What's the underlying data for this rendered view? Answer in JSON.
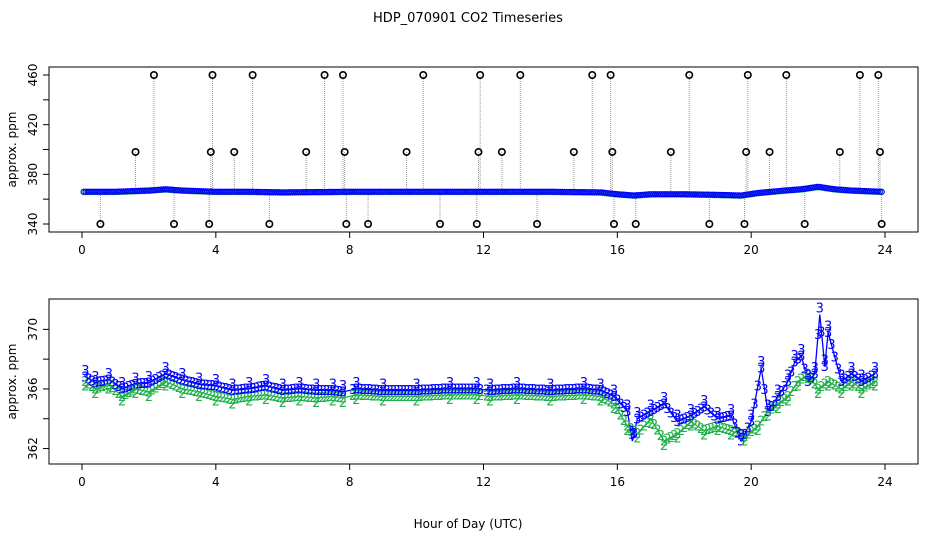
{
  "title": "HDP_070901  CO2 Timeseries",
  "xlabel": "Hour of Day (UTC)",
  "colors": {
    "channel2": "#22b14c",
    "channel3": "#0000ff",
    "qc_marker": "#000000",
    "drop_line": "#999999",
    "overlap": "#00aaff"
  },
  "chart_data": [
    {
      "type": "scatter",
      "panel": "top",
      "ylabel": "approx. ppm",
      "xlim": [
        0,
        24
      ],
      "ylim": [
        340,
        460
      ],
      "x_ticks": [
        0,
        4,
        8,
        12,
        16,
        20,
        24
      ],
      "y_ticks": [
        340,
        380,
        420,
        460
      ],
      "y_tick_labels": [
        "340",
        "380",
        "420",
        "460"
      ],
      "y_minor_ticks": [
        360,
        400,
        440
      ],
      "baseline": {
        "x": [
          0.05,
          1.0,
          2.0,
          2.5,
          3.0,
          4.0,
          5.0,
          6.0,
          8.0,
          10.0,
          12.0,
          14.0,
          15.5,
          16.0,
          16.5,
          17.0,
          18.0,
          19.0,
          19.7,
          20.2,
          21.0,
          21.5,
          22.0,
          22.5,
          23.0,
          23.9
        ],
        "y": [
          366,
          366,
          367,
          368,
          367,
          366,
          366,
          365.5,
          366,
          366,
          366,
          366,
          365.5,
          364,
          363,
          364,
          364,
          363.5,
          363,
          365,
          367,
          368,
          370,
          368,
          367,
          366
        ]
      },
      "flags_high": {
        "x": [
          2.15,
          3.9,
          5.1,
          7.25,
          7.8,
          10.2,
          11.9,
          13.1,
          15.25,
          15.8,
          18.15,
          19.9,
          21.05,
          23.25,
          23.8
        ],
        "y": [
          460,
          460,
          460,
          460,
          460,
          460,
          460,
          460,
          460,
          460,
          460,
          460,
          460,
          460,
          460
        ]
      },
      "flags_mid": {
        "x": [
          1.6,
          3.85,
          4.55,
          6.7,
          7.85,
          9.7,
          11.85,
          12.55,
          14.7,
          15.85,
          17.6,
          19.85,
          20.55,
          22.65,
          23.85
        ],
        "y": [
          398,
          398,
          398,
          398,
          398,
          398,
          398,
          398,
          398,
          398,
          398,
          398,
          398,
          398,
          398
        ]
      },
      "flags_low": {
        "x": [
          0.55,
          2.75,
          3.8,
          5.6,
          7.9,
          8.55,
          10.7,
          11.8,
          13.6,
          15.9,
          16.55,
          18.75,
          19.8,
          21.6,
          23.9
        ],
        "y": [
          340,
          340,
          340,
          340,
          340,
          340,
          340,
          340,
          340,
          340,
          340,
          340,
          340,
          340,
          340
        ]
      }
    },
    {
      "type": "line",
      "panel": "bottom",
      "ylabel": "approx. ppm",
      "xlim": [
        0,
        24
      ],
      "ylim": [
        361.5,
        371.5
      ],
      "x_ticks": [
        0,
        4,
        8,
        12,
        16,
        20,
        24
      ],
      "y_ticks": [
        362,
        366,
        370
      ],
      "y_tick_labels": [
        "362",
        "366",
        "370"
      ],
      "y_minor_ticks": [
        364,
        368
      ],
      "series": [
        {
          "name": "2",
          "x": [
            0.1,
            0.4,
            0.8,
            1.2,
            1.6,
            2.0,
            2.5,
            3.0,
            3.5,
            4.0,
            4.5,
            5.0,
            5.5,
            6.0,
            6.5,
            7.0,
            7.5,
            7.8,
            8.2,
            9.0,
            10.0,
            11.0,
            11.8,
            12.2,
            13.0,
            14.0,
            15.0,
            15.5,
            15.9,
            16.3,
            16.6,
            17.0,
            17.4,
            17.8,
            18.2,
            18.6,
            19.0,
            19.4,
            19.8,
            20.2,
            20.5,
            20.8,
            21.1,
            21.4,
            21.7,
            22.0,
            22.3,
            22.7,
            23.0,
            23.3,
            23.7
          ],
          "y": [
            366.5,
            366,
            366.3,
            365.5,
            366,
            365.8,
            366.5,
            366,
            365.8,
            365.5,
            365.3,
            365.5,
            365.6,
            365.4,
            365.5,
            365.4,
            365.5,
            365.4,
            365.6,
            365.5,
            365.5,
            365.6,
            365.6,
            365.5,
            365.6,
            365.5,
            365.6,
            365.5,
            365,
            363.5,
            363,
            364,
            362.5,
            363,
            363.8,
            363.2,
            363.5,
            363.2,
            362.8,
            363.5,
            364.5,
            365,
            365.5,
            366.5,
            367,
            366,
            366.5,
            366,
            366.5,
            366,
            366.5
          ]
        },
        {
          "name": "3",
          "x": [
            0.1,
            0.4,
            0.8,
            1.2,
            1.6,
            2.0,
            2.5,
            3.0,
            3.5,
            4.0,
            4.5,
            5.0,
            5.5,
            6.0,
            6.5,
            7.0,
            7.5,
            7.8,
            8.2,
            9.0,
            10.0,
            11.0,
            11.8,
            12.2,
            13.0,
            14.0,
            15.0,
            15.5,
            15.9,
            16.3,
            16.45,
            16.6,
            17.0,
            17.4,
            17.8,
            18.2,
            18.6,
            19.0,
            19.4,
            19.7,
            20.0,
            20.3,
            20.5,
            20.8,
            21.1,
            21.3,
            21.5,
            21.7,
            21.9,
            22.05,
            22.2,
            22.3,
            22.7,
            23.0,
            23.3,
            23.7
          ],
          "y": [
            366.8,
            366.4,
            366.6,
            366,
            366.3,
            366.4,
            367,
            366.6,
            366.3,
            366.2,
            365.9,
            366,
            366.2,
            365.9,
            366,
            365.9,
            365.9,
            365.8,
            366,
            365.9,
            365.9,
            366,
            366,
            365.9,
            366,
            365.9,
            366,
            365.9,
            365.5,
            364.5,
            362.5,
            364,
            364.5,
            365,
            363.8,
            364.2,
            364.8,
            364,
            364.2,
            362.5,
            363.8,
            367.4,
            364.5,
            365.5,
            366.5,
            367.8,
            368.2,
            366.5,
            367,
            371,
            367.5,
            369.8,
            366.5,
            367,
            366.5,
            367
          ]
        }
      ]
    }
  ]
}
